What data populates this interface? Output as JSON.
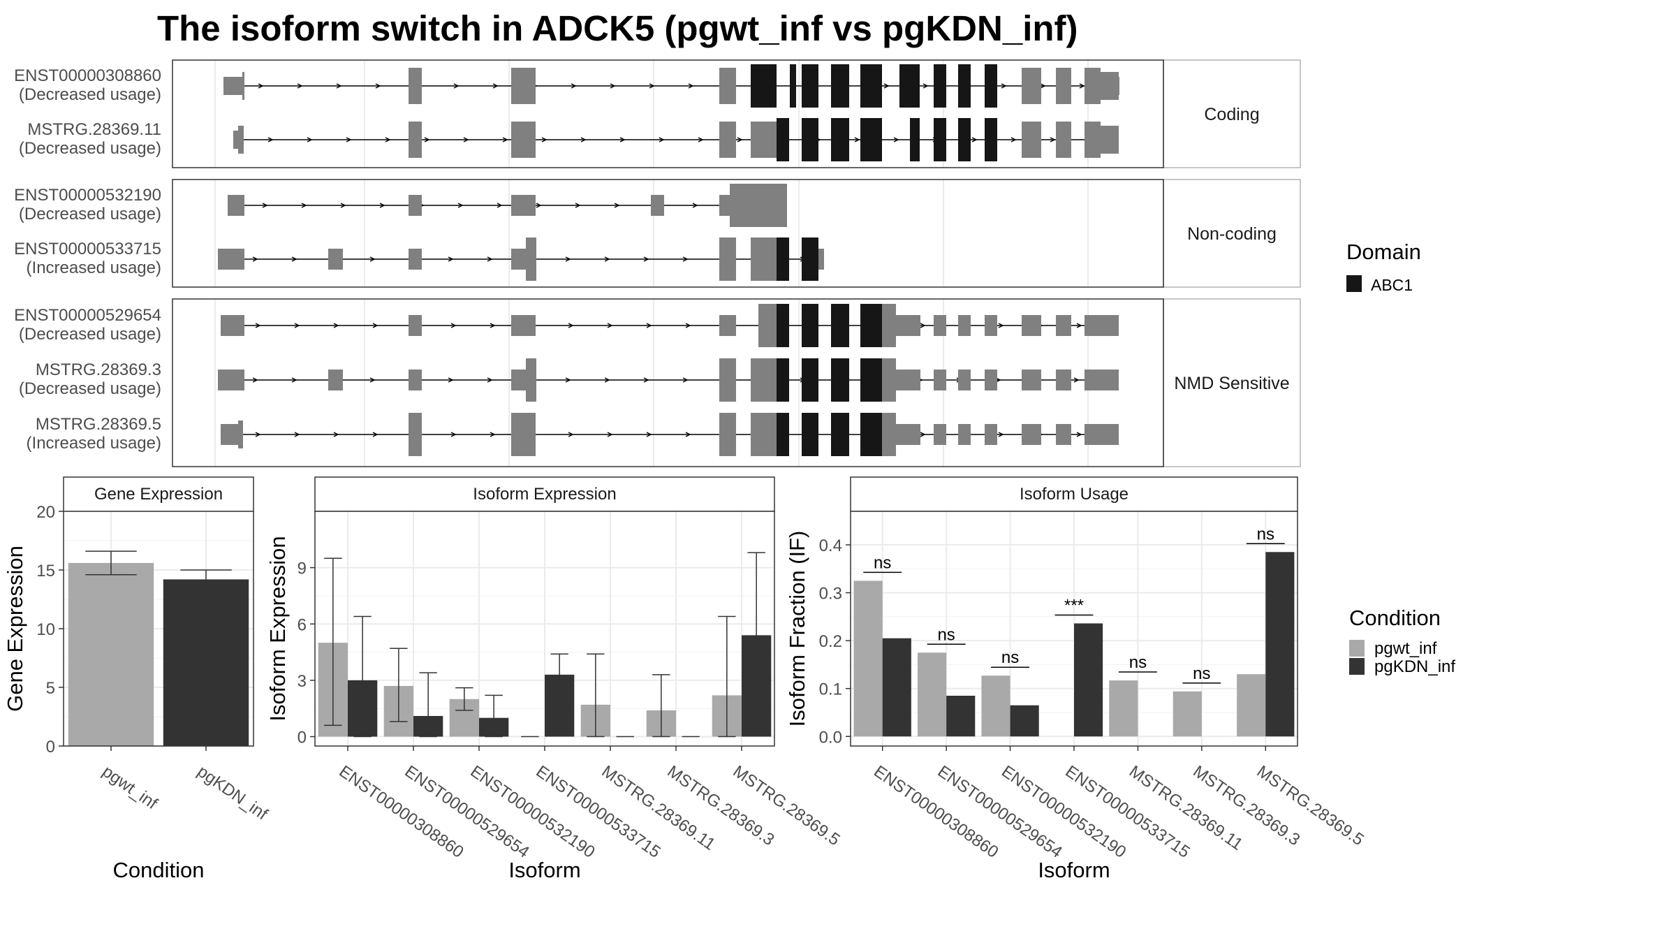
{
  "title": "The isoform switch in ADCK5 (pgwt_inf vs pgKDN_inf)",
  "colors": {
    "pgwt_inf": "#a9a9a9",
    "pgKDN_inf": "#333333",
    "exon": "#808080",
    "domain_ABC1": "#161616"
  },
  "structure": {
    "groups": [
      {
        "label": "Coding",
        "isoforms": [
          {
            "name": "ENST00000308860",
            "usage": "(Decreased usage)"
          },
          {
            "name": "MSTRG.28369.11",
            "usage": "(Decreased usage)"
          }
        ]
      },
      {
        "label": "Non-coding",
        "isoforms": [
          {
            "name": "ENST00000532190",
            "usage": "(Decreased usage)"
          },
          {
            "name": "ENST00000533715",
            "usage": "(Increased usage)"
          }
        ]
      },
      {
        "label": "NMD Sensitive",
        "isoforms": [
          {
            "name": "ENST00000529654",
            "usage": "(Decreased usage)"
          },
          {
            "name": "MSTRG.28369.3",
            "usage": "(Decreased usage)"
          },
          {
            "name": "MSTRG.28369.5",
            "usage": "(Increased usage)"
          }
        ]
      }
    ],
    "domain_legend": {
      "title": "Domain",
      "items": [
        "ABC1"
      ]
    }
  },
  "chart_data": [
    {
      "type": "bar",
      "title": "Gene Expression",
      "xlabel": "Condition",
      "ylabel": "Gene Expression",
      "categories": [
        "pgwt_inf",
        "pgKDN_inf"
      ],
      "values": [
        15.6,
        14.2
      ],
      "error": [
        [
          14.6,
          16.6
        ],
        [
          13.4,
          15.0
        ]
      ],
      "ylim": [
        0,
        20
      ],
      "yticks": [
        0,
        5,
        10,
        15,
        20
      ]
    },
    {
      "type": "bar",
      "title": "Isoform Expression",
      "xlabel": "Isoform",
      "ylabel": "Isoform Expression",
      "categories": [
        "ENST00000308860",
        "ENST00000529654",
        "ENST00000532190",
        "ENST00000533715",
        "MSTRG.28369.11",
        "MSTRG.28369.3",
        "MSTRG.28369.5"
      ],
      "series": [
        {
          "name": "pgwt_inf",
          "values": [
            5.0,
            2.7,
            2.0,
            0.0,
            1.7,
            1.4,
            2.2
          ],
          "error": [
            [
              0.6,
              9.5
            ],
            [
              0.8,
              4.7
            ],
            [
              1.4,
              2.6
            ],
            [
              0.0,
              0.0
            ],
            [
              0.0,
              4.4
            ],
            [
              0.0,
              3.3
            ],
            [
              0.0,
              6.4
            ]
          ]
        },
        {
          "name": "pgKDN_inf",
          "values": [
            3.0,
            1.1,
            1.0,
            3.3,
            0.0,
            0.0,
            5.4
          ],
          "error": [
            [
              0.0,
              6.4
            ],
            [
              0.0,
              3.4
            ],
            [
              0.0,
              2.2
            ],
            [
              2.2,
              4.4
            ],
            [
              0.0,
              0.0
            ],
            [
              0.0,
              0.0
            ],
            [
              1.0,
              9.8
            ]
          ]
        }
      ],
      "ylim": [
        -0.5,
        12
      ],
      "yticks": [
        0,
        3,
        6,
        9
      ]
    },
    {
      "type": "bar",
      "title": "Isoform Usage",
      "xlabel": "Isoform",
      "ylabel": "Isoform Fraction (IF)",
      "categories": [
        "ENST00000308860",
        "ENST00000529654",
        "ENST00000532190",
        "ENST00000533715",
        "MSTRG.28369.11",
        "MSTRG.28369.3",
        "MSTRG.28369.5"
      ],
      "series": [
        {
          "name": "pgwt_inf",
          "values": [
            0.325,
            0.175,
            0.127,
            0.0,
            0.117,
            0.094,
            0.13
          ]
        },
        {
          "name": "pgKDN_inf",
          "values": [
            0.205,
            0.085,
            0.065,
            0.236,
            0.0,
            0.0,
            0.385
          ]
        }
      ],
      "significance": [
        "ns",
        "ns",
        "ns",
        "***",
        "ns",
        "ns",
        "ns"
      ],
      "ylim": [
        -0.02,
        0.47
      ],
      "yticks": [
        0.0,
        0.1,
        0.2,
        0.3,
        0.4
      ]
    }
  ],
  "condition_legend": {
    "title": "Condition",
    "items": [
      "pgwt_inf",
      "pgKDN_inf"
    ]
  }
}
